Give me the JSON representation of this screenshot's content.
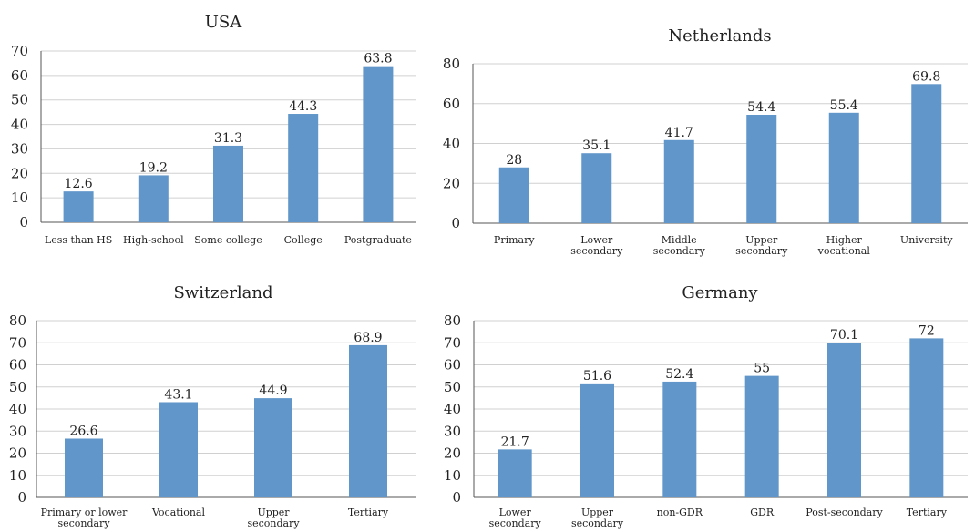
{
  "chart_data": [
    {
      "type": "bar",
      "title": "USA",
      "categories": [
        "Less than HS",
        "High-school",
        "Some college",
        "College",
        "Postgraduate"
      ],
      "values": [
        12.6,
        19.2,
        31.3,
        44.3,
        63.8
      ],
      "ylim": [
        0,
        70
      ],
      "yticks": [
        0,
        10,
        20,
        30,
        40,
        50,
        60,
        70
      ],
      "bar_color": "#6096c9",
      "grid": true
    },
    {
      "type": "bar",
      "title": "Netherlands",
      "categories": [
        [
          "Primary"
        ],
        [
          "Lower",
          "secondary"
        ],
        [
          "Middle",
          "secondary"
        ],
        [
          "Upper",
          "secondary"
        ],
        [
          "Higher",
          "vocational"
        ],
        [
          "University"
        ]
      ],
      "values": [
        28,
        35.1,
        41.7,
        54.4,
        55.4,
        69.8
      ],
      "ylim": [
        0,
        80
      ],
      "yticks": [
        0,
        20,
        40,
        60,
        80
      ],
      "bar_color": "#6096c9",
      "grid": true
    },
    {
      "type": "bar",
      "title": "Switzerland",
      "categories": [
        [
          "Primary or lower",
          "secondary"
        ],
        [
          "Vocational"
        ],
        [
          "Upper",
          "secondary"
        ],
        [
          "Tertiary"
        ]
      ],
      "values": [
        26.6,
        43.1,
        44.9,
        68.9
      ],
      "ylim": [
        0,
        80
      ],
      "yticks": [
        0,
        10,
        20,
        30,
        40,
        50,
        60,
        70,
        80
      ],
      "bar_color": "#6096c9",
      "grid": true
    },
    {
      "type": "bar",
      "title": "Germany",
      "categories": [
        [
          "Lower",
          "secondary"
        ],
        [
          "Upper",
          "secondary"
        ],
        [
          "non-GDR"
        ],
        [
          "GDR"
        ],
        [
          "Post-secondary"
        ],
        [
          "Tertiary"
        ]
      ],
      "values": [
        21.7,
        51.6,
        52.4,
        55,
        70.1,
        72
      ],
      "ylim": [
        0,
        80
      ],
      "yticks": [
        0,
        10,
        20,
        30,
        40,
        50,
        60,
        70,
        80
      ],
      "bar_color": "#6096c9",
      "grid": true
    }
  ]
}
